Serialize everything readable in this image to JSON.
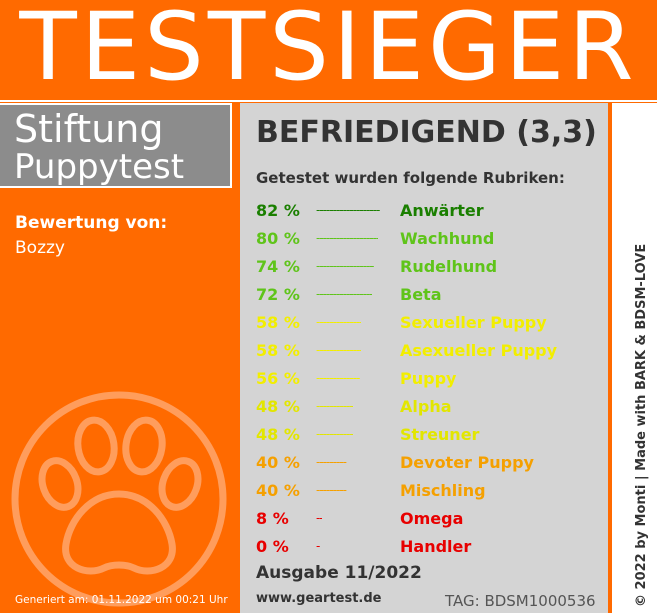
{
  "banner": {
    "title": "TESTSIEGER"
  },
  "organization": {
    "line1": "Stiftung",
    "line2": "Puppytest"
  },
  "reviewer": {
    "label": "Bewertung von:",
    "name": "Bozzy"
  },
  "generated": "Generiert am: 01.11.2022 um 00:21 Uhr",
  "result": {
    "rating": "BEFRIEDIGEND (3,3)",
    "subtitle": "Getestet wurden folgende Rubriken:",
    "categories": [
      {
        "percent": "82 %",
        "value": 82,
        "name": "Anwärter",
        "color": "#1a7f00"
      },
      {
        "percent": "80 %",
        "value": 80,
        "name": "Wachhund",
        "color": "#5fc41a"
      },
      {
        "percent": "74 %",
        "value": 74,
        "name": "Rudelhund",
        "color": "#5fc41a"
      },
      {
        "percent": "72 %",
        "value": 72,
        "name": "Beta",
        "color": "#5fc41a"
      },
      {
        "percent": "58 %",
        "value": 58,
        "name": "Sexueller Puppy",
        "color": "#f2ee00"
      },
      {
        "percent": "58 %",
        "value": 58,
        "name": "Asexueller Puppy",
        "color": "#f2ee00"
      },
      {
        "percent": "56 %",
        "value": 56,
        "name": "Puppy",
        "color": "#f2ee00"
      },
      {
        "percent": "48 %",
        "value": 48,
        "name": "Alpha",
        "color": "#e2e600"
      },
      {
        "percent": "48 %",
        "value": 48,
        "name": "Streuner",
        "color": "#e2e600"
      },
      {
        "percent": "40 %",
        "value": 40,
        "name": "Devoter Puppy",
        "color": "#f5a000"
      },
      {
        "percent": "40 %",
        "value": 40,
        "name": "Mischling",
        "color": "#f5a000"
      },
      {
        "percent": "8 %",
        "value": 8,
        "name": "Omega",
        "color": "#e80000"
      },
      {
        "percent": "0 %",
        "value": 0,
        "name": "Handler",
        "color": "#e80000"
      }
    ]
  },
  "footer": {
    "issue": "Ausgabe 11/2022",
    "url": "www.geartest.de",
    "tag": "TAG: BDSM1000536"
  },
  "side_text": "© 2022 by Monti | Made with BARK & BDSM-LOVE"
}
